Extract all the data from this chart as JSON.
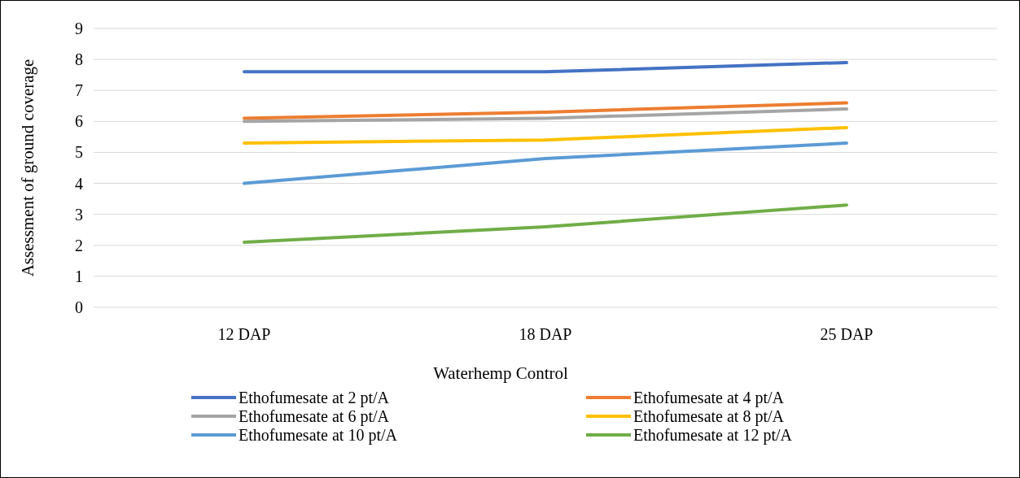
{
  "chart_data": {
    "type": "line",
    "xlabel": "Waterhemp Control",
    "ylabel": "Assessment of ground coverage",
    "categories": [
      "12 DAP",
      "18 DAP",
      "25 DAP"
    ],
    "ylim": [
      0,
      9
    ],
    "yticks": [
      0,
      1,
      2,
      3,
      4,
      5,
      6,
      7,
      8,
      9
    ],
    "grid": "y",
    "legend": "bottom",
    "line_style": "solid",
    "marker": "none",
    "series": [
      {
        "name": "Ethofumesate at 2 pt/A",
        "color": "#4472c4",
        "values": [
          7.6,
          7.6,
          7.9
        ]
      },
      {
        "name": "Ethofumesate at 4 pt/A",
        "color": "#ed7d31",
        "values": [
          6.1,
          6.3,
          6.6
        ]
      },
      {
        "name": "Ethofumesate at 6 pt/A",
        "color": "#a5a5a5",
        "values": [
          6.0,
          6.1,
          6.4
        ]
      },
      {
        "name": "Ethofumesate at 8 pt/A",
        "color": "#ffc000",
        "values": [
          5.3,
          5.4,
          5.8
        ]
      },
      {
        "name": "Ethofumesate at 10 pt/A",
        "color": "#5b9bd5",
        "values": [
          4.0,
          4.8,
          5.3
        ]
      },
      {
        "name": "Ethofumesate at 12 pt/A",
        "color": "#70ad47",
        "values": [
          2.1,
          2.6,
          3.3
        ]
      }
    ]
  }
}
